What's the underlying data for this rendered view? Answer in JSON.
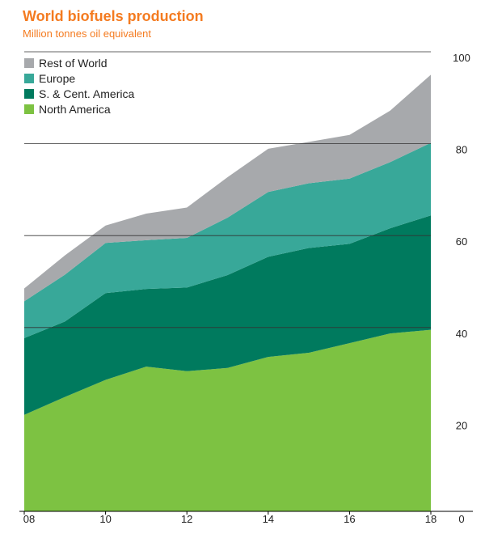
{
  "chart_data": {
    "type": "area",
    "stacked": true,
    "title": "World biofuels production",
    "subtitle": "Million tonnes oil equivalent",
    "x": [
      2008,
      2009,
      2010,
      2011,
      2012,
      2013,
      2014,
      2015,
      2016,
      2017,
      2018
    ],
    "x_tick_values": [
      2008,
      2010,
      2012,
      2014,
      2016,
      2018
    ],
    "x_tick_labels": [
      "08",
      "10",
      "12",
      "14",
      "16",
      "18"
    ],
    "y_ticks": [
      0,
      20,
      40,
      60,
      80,
      100
    ],
    "ylim": [
      0,
      100
    ],
    "gridlines_at": [
      40,
      60,
      80,
      100
    ],
    "legend_position": "top-left",
    "series": [
      {
        "name": "North America",
        "color": "#7dc242",
        "values": [
          21.0,
          24.9,
          28.6,
          31.5,
          30.5,
          31.2,
          33.6,
          34.5,
          36.6,
          38.7,
          39.5
        ]
      },
      {
        "name": "S. & Cent. America",
        "color": "#007a5e",
        "values": [
          16.7,
          16.4,
          18.9,
          16.9,
          18.2,
          20.2,
          21.8,
          22.8,
          21.6,
          22.9,
          24.9
        ]
      },
      {
        "name": "Europe",
        "color": "#38a899",
        "values": [
          8.0,
          10.2,
          10.9,
          10.6,
          10.8,
          12.5,
          14.1,
          14.1,
          14.2,
          14.4,
          15.8
        ]
      },
      {
        "name": "Rest of World",
        "color": "#a7a9ac",
        "values": [
          2.8,
          4.2,
          3.8,
          5.8,
          6.6,
          8.8,
          9.4,
          9.0,
          9.5,
          11.2,
          14.8
        ]
      }
    ],
    "legend_order": [
      "Rest of World",
      "Europe",
      "S. & Cent. America",
      "North America"
    ]
  }
}
